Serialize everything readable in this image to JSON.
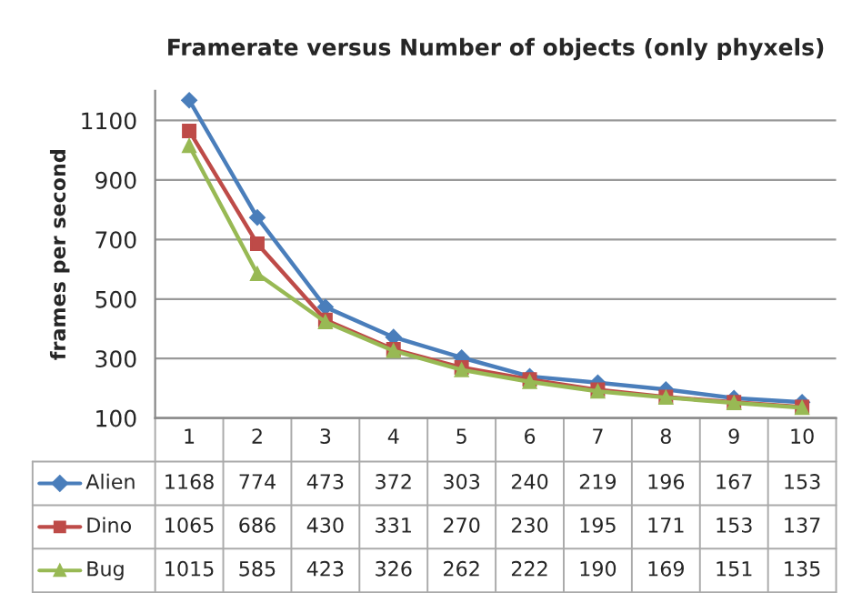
{
  "chart_data": {
    "type": "line",
    "title": "Framerate versus Number of objects (only phyxels)",
    "ylabel": "frames per second",
    "categories": [
      "1",
      "2",
      "3",
      "4",
      "5",
      "6",
      "7",
      "8",
      "9",
      "10"
    ],
    "series": [
      {
        "name": "Alien",
        "color": "#4a7ebb",
        "marker": "diamond",
        "values": [
          1168,
          774,
          473,
          372,
          303,
          240,
          219,
          196,
          167,
          153
        ]
      },
      {
        "name": "Dino",
        "color": "#be4b48",
        "marker": "square",
        "values": [
          1065,
          686,
          430,
          331,
          270,
          230,
          195,
          171,
          153,
          137
        ]
      },
      {
        "name": "Bug",
        "color": "#98b954",
        "marker": "triangle",
        "values": [
          1015,
          585,
          423,
          326,
          262,
          222,
          190,
          169,
          151,
          135
        ]
      }
    ],
    "ylim": [
      100,
      1200
    ],
    "yticks": [
      100,
      300,
      500,
      700,
      900,
      1100
    ],
    "grid": "y",
    "data_labels": true,
    "legend": "bottom left",
    "line_style": "solid"
  }
}
